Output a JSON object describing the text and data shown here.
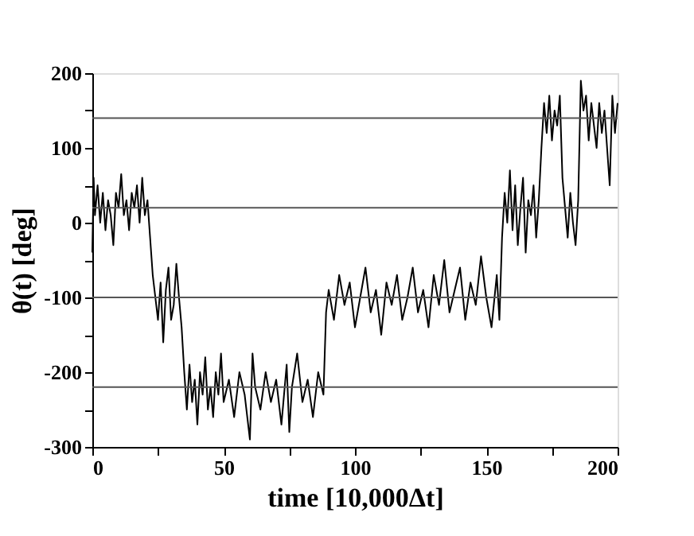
{
  "chart_data": {
    "type": "line",
    "xlabel": "time [10,000Δt]",
    "ylabel": "θ(t) [deg]",
    "xlim": [
      0,
      200
    ],
    "ylim": [
      -300,
      200
    ],
    "xticks": [
      0,
      {
        "value": 25,
        "label": null
      },
      50,
      {
        "value": 75,
        "label": null
      },
      100,
      {
        "value": 125,
        "label": null
      },
      150,
      {
        "value": 175,
        "label": null
      },
      200
    ],
    "yticks": [
      -300,
      {
        "value": -250,
        "label": null
      },
      -200,
      {
        "value": -150,
        "label": null
      },
      -100,
      {
        "value": -50,
        "label": null
      },
      0,
      {
        "value": 50,
        "label": null
      },
      100,
      {
        "value": 150,
        "label": null
      },
      200
    ],
    "grid": false,
    "legend": false,
    "marker": "none",
    "line_style": "solid",
    "ref_lines": [
      {
        "axis": "y",
        "value": 140,
        "color": "#555555"
      },
      {
        "axis": "y",
        "value": 20,
        "color": "#555555"
      },
      {
        "axis": "y",
        "value": -100,
        "color": "#555555"
      },
      {
        "axis": "y",
        "value": -220,
        "color": "#555555"
      }
    ],
    "series": [
      {
        "color": "#000000",
        "x": [
          0,
          0.5,
          1,
          2,
          3,
          4,
          5,
          6,
          7,
          8,
          9,
          10,
          11,
          12,
          13,
          14,
          15,
          16,
          17,
          18,
          19,
          20,
          21,
          22,
          23,
          24,
          25,
          26,
          27,
          28,
          29,
          30,
          31,
          32,
          33,
          34,
          35,
          36,
          37,
          38,
          39,
          40,
          41,
          42,
          43,
          44,
          45,
          46,
          47,
          48,
          49,
          50,
          52,
          54,
          56,
          58,
          60,
          61,
          62,
          64,
          66,
          68,
          70,
          72,
          74,
          75,
          76,
          78,
          80,
          82,
          84,
          86,
          88,
          89,
          90,
          92,
          94,
          96,
          98,
          100,
          102,
          104,
          106,
          108,
          110,
          112,
          114,
          116,
          118,
          120,
          122,
          124,
          126,
          128,
          130,
          132,
          134,
          136,
          138,
          140,
          142,
          144,
          146,
          148,
          150,
          152,
          154,
          155,
          156,
          157,
          158,
          159,
          160,
          161,
          162,
          163,
          164,
          165,
          166,
          167,
          168,
          169,
          170,
          171,
          172,
          173,
          174,
          175,
          176,
          177,
          178,
          179,
          180,
          181,
          182,
          183,
          184,
          185,
          186,
          187,
          188,
          189,
          190,
          191,
          192,
          193,
          194,
          195,
          196,
          197,
          198,
          199,
          200
        ],
        "values": [
          -40,
          60,
          10,
          50,
          0,
          40,
          -10,
          30,
          10,
          -30,
          40,
          20,
          65,
          10,
          30,
          -10,
          40,
          20,
          50,
          0,
          60,
          10,
          30,
          -20,
          -70,
          -100,
          -130,
          -80,
          -160,
          -90,
          -60,
          -130,
          -110,
          -55,
          -100,
          -140,
          -200,
          -250,
          -190,
          -240,
          -210,
          -270,
          -200,
          -230,
          -180,
          -250,
          -220,
          -260,
          -200,
          -230,
          -175,
          -240,
          -210,
          -260,
          -200,
          -230,
          -290,
          -175,
          -220,
          -250,
          -200,
          -240,
          -210,
          -270,
          -190,
          -280,
          -220,
          -175,
          -240,
          -210,
          -260,
          -200,
          -230,
          -120,
          -90,
          -130,
          -70,
          -110,
          -80,
          -140,
          -100,
          -60,
          -120,
          -90,
          -150,
          -80,
          -110,
          -70,
          -130,
          -100,
          -60,
          -120,
          -90,
          -140,
          -70,
          -110,
          -50,
          -120,
          -90,
          -60,
          -130,
          -80,
          -110,
          -45,
          -100,
          -140,
          -70,
          -130,
          -20,
          40,
          0,
          70,
          -10,
          50,
          -30,
          20,
          60,
          -40,
          30,
          10,
          50,
          -20,
          30,
          100,
          160,
          120,
          170,
          110,
          150,
          130,
          170,
          60,
          20,
          -20,
          40,
          0,
          -30,
          30,
          190,
          150,
          170,
          110,
          160,
          130,
          100,
          160,
          120,
          150,
          100,
          50,
          170,
          120,
          160
        ]
      }
    ]
  }
}
